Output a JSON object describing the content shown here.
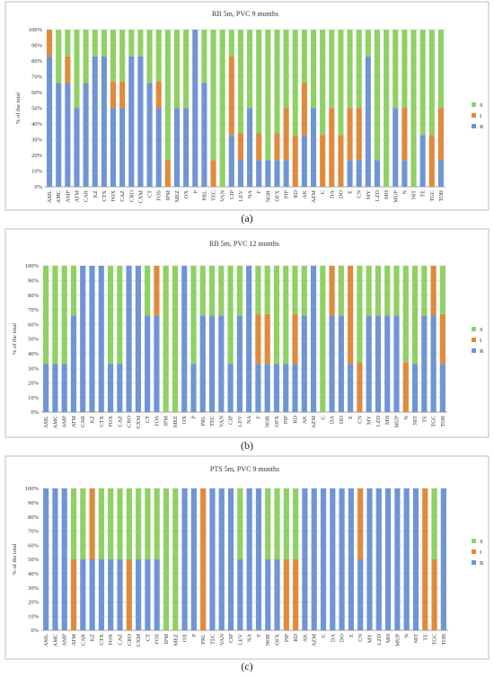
{
  "chart_data": [
    {
      "type": "bar",
      "stacked": true,
      "title": "RB 5m, PVC 9 months",
      "ylabel": "% of the total",
      "ylim": [
        0,
        100
      ],
      "yticks": [
        "0%",
        "10%",
        "20%",
        "30%",
        "40%",
        "50%",
        "60%",
        "70%",
        "80%",
        "90%",
        "100%"
      ],
      "grid": true,
      "legend_position": "right",
      "panel_label": "(a)",
      "categories": [
        "AML",
        "AMC",
        "AMP",
        "ATM",
        "CAR",
        "KZ",
        "CTX",
        "FOX",
        "CAZ",
        "CRO",
        "CXM",
        "CT",
        "FOS",
        "IPM",
        "MEZ",
        "OX",
        "P",
        "PRL",
        "TEC",
        "VAN",
        "CIP",
        "LEV",
        "NA",
        "F",
        "NOR",
        "OFX",
        "PIP",
        "RD",
        "AK",
        "AZM",
        "C",
        "DA",
        "DO",
        "E",
        "CN",
        "MY",
        "LZD",
        "MH",
        "MUP",
        "N",
        "NIT",
        "TE",
        "TGC",
        "TOB"
      ],
      "series": [
        {
          "name": "R",
          "color": "#6f95d3",
          "values": [
            83,
            66,
            66,
            50,
            66,
            83,
            83,
            50,
            50,
            83,
            83,
            66,
            50,
            0,
            50,
            50,
            100,
            66,
            0,
            0,
            33,
            17,
            50,
            17,
            17,
            17,
            17,
            0,
            33,
            50,
            0,
            0,
            0,
            17,
            17,
            83,
            17,
            0,
            50,
            17,
            0,
            33,
            0,
            17
          ]
        },
        {
          "name": "I",
          "color": "#e08a3c",
          "values": [
            17,
            0,
            17,
            0,
            0,
            0,
            0,
            17,
            17,
            0,
            0,
            0,
            17,
            17,
            0,
            0,
            0,
            0,
            17,
            0,
            50,
            17,
            0,
            17,
            0,
            17,
            33,
            33,
            33,
            0,
            33,
            50,
            33,
            33,
            33,
            0,
            0,
            0,
            0,
            33,
            0,
            0,
            33,
            33
          ]
        },
        {
          "name": "S",
          "color": "#8fd164",
          "values": [
            0,
            34,
            17,
            50,
            34,
            17,
            17,
            33,
            33,
            17,
            17,
            34,
            33,
            83,
            50,
            50,
            0,
            34,
            83,
            100,
            17,
            66,
            50,
            66,
            83,
            66,
            50,
            67,
            34,
            50,
            67,
            50,
            67,
            50,
            50,
            17,
            83,
            100,
            50,
            50,
            100,
            67,
            67,
            50
          ]
        }
      ]
    },
    {
      "type": "bar",
      "stacked": true,
      "title": "RB 5m, PVC 12 months",
      "ylabel": "% of the total",
      "ylim": [
        0,
        100
      ],
      "yticks": [
        "0%",
        "10%",
        "20%",
        "30%",
        "40%",
        "50%",
        "60%",
        "70%",
        "80%",
        "90%",
        "100%"
      ],
      "grid": true,
      "legend_position": "right",
      "panel_label": "(b)",
      "categories": [
        "AML",
        "AMC",
        "AMP",
        "ATM",
        "CAR",
        "KZ",
        "CTX",
        "FOX",
        "CAZ",
        "CRO",
        "CXM",
        "CT",
        "FOS",
        "IPM",
        "MEZ",
        "OX",
        "P",
        "PRL",
        "TEC",
        "VAN",
        "CIP",
        "LEV",
        "NA",
        "F",
        "NOR",
        "OFX",
        "PIP",
        "RD",
        "AK",
        "AZM",
        "C",
        "DA",
        "DO",
        "E",
        "CN",
        "MY",
        "LZD",
        "MH",
        "MUP",
        "N",
        "NIT",
        "TE",
        "TGC",
        "TOB"
      ],
      "series": [
        {
          "name": "R",
          "color": "#6f95d3",
          "values": [
            33,
            33,
            33,
            66,
            100,
            100,
            100,
            33,
            33,
            100,
            100,
            66,
            66,
            0,
            0,
            100,
            33,
            66,
            66,
            66,
            33,
            66,
            100,
            33,
            33,
            33,
            33,
            33,
            66,
            100,
            0,
            66,
            66,
            33,
            0,
            66,
            66,
            66,
            66,
            0,
            33,
            66,
            66,
            33
          ]
        },
        {
          "name": "I",
          "color": "#e08a3c",
          "values": [
            0,
            0,
            0,
            0,
            0,
            0,
            0,
            0,
            0,
            0,
            0,
            0,
            34,
            0,
            0,
            0,
            0,
            0,
            0,
            0,
            0,
            0,
            0,
            34,
            34,
            0,
            0,
            34,
            0,
            0,
            0,
            34,
            0,
            67,
            34,
            0,
            0,
            0,
            0,
            34,
            0,
            0,
            34,
            34
          ]
        },
        {
          "name": "S",
          "color": "#8fd164",
          "values": [
            67,
            67,
            67,
            34,
            0,
            0,
            0,
            67,
            67,
            0,
            0,
            34,
            0,
            100,
            100,
            0,
            67,
            34,
            34,
            34,
            67,
            34,
            0,
            33,
            33,
            67,
            67,
            33,
            34,
            0,
            100,
            0,
            34,
            0,
            66,
            34,
            34,
            34,
            34,
            66,
            67,
            34,
            0,
            33
          ]
        }
      ]
    },
    {
      "type": "bar",
      "stacked": true,
      "title": "PTS 5m, PVC 9 months",
      "ylabel": "% of the total",
      "ylim": [
        0,
        100
      ],
      "yticks": [
        "0%",
        "10%",
        "20%",
        "30%",
        "40%",
        "50%",
        "60%",
        "70%",
        "80%",
        "90%",
        "100%"
      ],
      "grid": true,
      "legend_position": "right",
      "panel_label": "(c)",
      "categories": [
        "AML",
        "AMC",
        "AMP",
        "ATM",
        "CAR",
        "KZ",
        "CTX",
        "FOX",
        "CAZ",
        "CRO",
        "CXM",
        "CT",
        "FOS",
        "IPM",
        "MEZ",
        "OX",
        "P",
        "PRL",
        "TEC",
        "VAN",
        "CIP",
        "LEV",
        "NA",
        "F",
        "NOR",
        "OFX",
        "PIP",
        "RD",
        "AK",
        "AZM",
        "C",
        "DA",
        "DO",
        "E",
        "CN",
        "MY",
        "LZD",
        "MH",
        "MUP",
        "N",
        "NIT",
        "TE",
        "TGC",
        "TOB"
      ],
      "series": [
        {
          "name": "R",
          "color": "#6f95d3",
          "values": [
            100,
            100,
            100,
            0,
            50,
            50,
            50,
            50,
            50,
            0,
            50,
            50,
            50,
            0,
            0,
            100,
            100,
            0,
            100,
            100,
            100,
            50,
            100,
            100,
            50,
            50,
            0,
            0,
            100,
            100,
            100,
            100,
            100,
            100,
            50,
            100,
            100,
            100,
            100,
            100,
            100,
            0,
            0,
            100
          ]
        },
        {
          "name": "I",
          "color": "#e08a3c",
          "values": [
            0,
            0,
            0,
            50,
            0,
            50,
            0,
            0,
            0,
            50,
            0,
            0,
            0,
            0,
            0,
            0,
            0,
            100,
            0,
            0,
            0,
            0,
            0,
            0,
            0,
            0,
            50,
            50,
            0,
            0,
            0,
            0,
            0,
            0,
            50,
            0,
            0,
            0,
            0,
            0,
            0,
            100,
            50,
            0
          ]
        },
        {
          "name": "S",
          "color": "#8fd164",
          "values": [
            0,
            0,
            0,
            50,
            50,
            0,
            50,
            50,
            50,
            50,
            50,
            50,
            50,
            100,
            100,
            0,
            0,
            0,
            0,
            0,
            0,
            50,
            0,
            0,
            50,
            50,
            50,
            50,
            0,
            0,
            0,
            0,
            0,
            0,
            0,
            0,
            0,
            0,
            0,
            0,
            0,
            0,
            50,
            0
          ]
        }
      ]
    }
  ]
}
